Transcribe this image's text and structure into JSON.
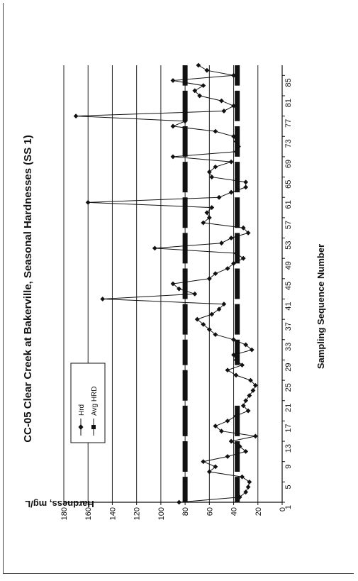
{
  "chart_data": {
    "type": "line",
    "title": "CC-05 Clear Creek at Bakerville, Seasonal Hardnesses (SS 1)",
    "xlabel": "Sampling Sequence Number",
    "ylabel": "Hardness, mg/L",
    "xlim": [
      1,
      87
    ],
    "ylim": [
      0,
      180
    ],
    "x_ticks": [
      1,
      5,
      9,
      13,
      17,
      21,
      25,
      29,
      33,
      37,
      41,
      45,
      49,
      53,
      57,
      61,
      65,
      69,
      73,
      77,
      81,
      85
    ],
    "y_ticks": [
      0,
      20,
      40,
      60,
      80,
      100,
      120,
      140,
      160,
      180
    ],
    "y_tick_labels": [
      "0",
      "20",
      "40",
      "60",
      "80",
      "100",
      "120",
      "140",
      "160",
      "180"
    ],
    "grid": "horizontal",
    "legend_position": "top-left",
    "series": [
      {
        "name": "Hrd",
        "style": "line-diamond",
        "x": [
          1,
          2,
          3,
          4,
          5,
          6,
          7,
          8,
          9,
          10,
          11,
          12,
          13,
          14,
          15,
          16,
          17,
          18,
          19,
          20,
          21,
          22,
          23,
          24,
          25,
          26,
          27,
          28,
          29,
          30,
          31,
          32,
          33,
          34,
          35,
          36,
          37,
          38,
          39,
          40,
          41,
          42,
          43,
          44,
          45,
          46,
          47,
          48,
          49,
          50,
          51,
          52,
          53,
          54,
          55,
          56,
          57,
          58,
          59,
          60,
          61,
          62,
          63,
          64,
          65,
          66,
          67,
          68,
          69,
          70,
          71,
          72,
          73,
          74,
          75,
          76,
          77,
          78,
          79,
          80,
          81,
          82,
          83,
          84,
          85,
          86,
          87
        ],
        "y": [
          85,
          35,
          30,
          28,
          27,
          33,
          60,
          55,
          65,
          45,
          30,
          35,
          42,
          22,
          50,
          55,
          45,
          38,
          28,
          32,
          30,
          27,
          24,
          22,
          26,
          38,
          45,
          33,
          38,
          40,
          25,
          30,
          40,
          55,
          60,
          65,
          70,
          58,
          52,
          48,
          148,
          72,
          85,
          90,
          60,
          55,
          45,
          40,
          32,
          38,
          105,
          50,
          42,
          28,
          32,
          65,
          60,
          62,
          58,
          160,
          52,
          42,
          30,
          30,
          58,
          60,
          55,
          42,
          90,
          38,
          36,
          38,
          40,
          55,
          90,
          80,
          170,
          48,
          40,
          50,
          68,
          72,
          65,
          90,
          40,
          62,
          69
        ]
      },
      {
        "name": "Avg HRD",
        "style": "dashed-square",
        "segments": [
          {
            "x_start": 1,
            "x_end": 6,
            "y": 37
          },
          {
            "x_start": 1,
            "x_end": 6,
            "y": 80
          },
          {
            "x_start": 7,
            "x_end": 13,
            "y": 80
          },
          {
            "x_start": 7,
            "x_end": 13,
            "y": 37
          },
          {
            "x_start": 14,
            "x_end": 20,
            "y": 80
          },
          {
            "x_start": 14,
            "x_end": 20,
            "y": 37
          },
          {
            "x_start": 21,
            "x_end": 27,
            "y": 80
          },
          {
            "x_start": 28,
            "x_end": 33,
            "y": 80
          },
          {
            "x_start": 28,
            "x_end": 33,
            "y": 37
          },
          {
            "x_start": 34,
            "x_end": 40,
            "y": 80
          },
          {
            "x_start": 34,
            "x_end": 40,
            "y": 37
          },
          {
            "x_start": 41,
            "x_end": 47,
            "y": 80
          },
          {
            "x_start": 41,
            "x_end": 47,
            "y": 37
          },
          {
            "x_start": 48,
            "x_end": 54,
            "y": 80
          },
          {
            "x_start": 48,
            "x_end": 54,
            "y": 37
          },
          {
            "x_start": 55,
            "x_end": 61,
            "y": 80
          },
          {
            "x_start": 55,
            "x_end": 61,
            "y": 37
          },
          {
            "x_start": 62,
            "x_end": 68,
            "y": 80
          },
          {
            "x_start": 62,
            "x_end": 68,
            "y": 37
          },
          {
            "x_start": 69,
            "x_end": 75,
            "y": 80
          },
          {
            "x_start": 69,
            "x_end": 75,
            "y": 37
          },
          {
            "x_start": 76,
            "x_end": 82,
            "y": 80
          },
          {
            "x_start": 76,
            "x_end": 82,
            "y": 37
          },
          {
            "x_start": 83,
            "x_end": 87,
            "y": 80
          },
          {
            "x_start": 83,
            "x_end": 87,
            "y": 37
          }
        ]
      }
    ],
    "legend": [
      {
        "label": "Hrd",
        "symbol": "diamond"
      },
      {
        "label": "Avg HRD",
        "symbol": "square"
      }
    ]
  },
  "colors": {
    "ink": "#111111",
    "grid": "#222222",
    "background": "#ffffff"
  }
}
